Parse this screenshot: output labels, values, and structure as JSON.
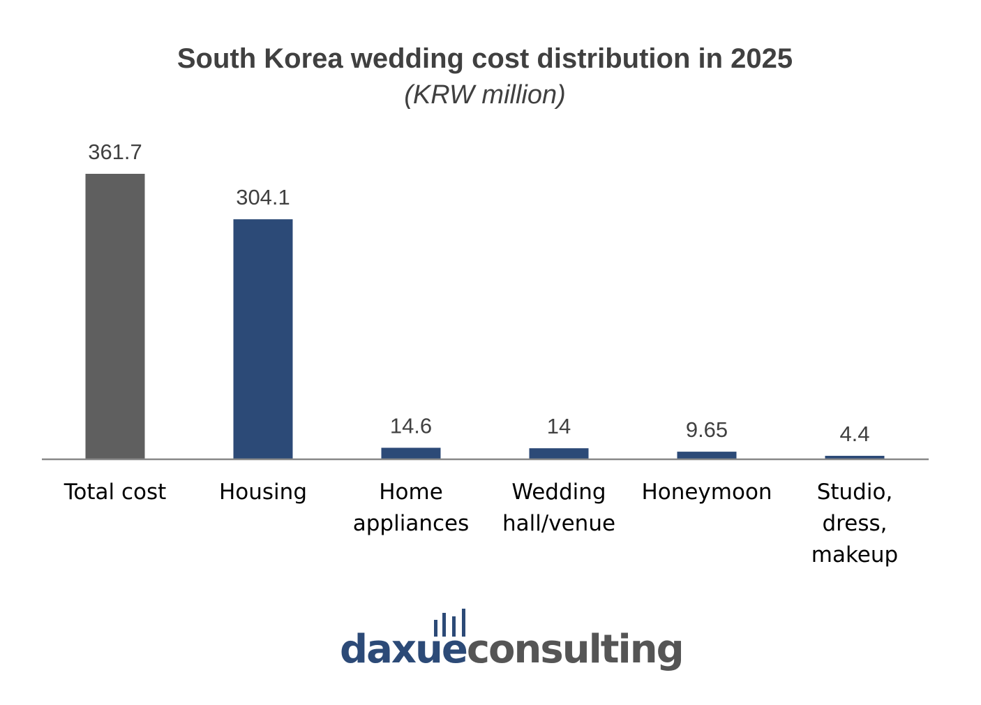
{
  "chart_data": {
    "type": "bar",
    "title": "South Korea wedding cost distribution in 2025",
    "subtitle": "(KRW million)",
    "categories": [
      [
        "Total cost"
      ],
      [
        "Housing"
      ],
      [
        "Home",
        "appliances"
      ],
      [
        "Wedding",
        "hall/venue"
      ],
      [
        "Honeymoon"
      ],
      [
        "Studio,",
        "dress,",
        "makeup"
      ]
    ],
    "values": [
      361.7,
      304.1,
      14.6,
      14,
      9.65,
      4.4
    ],
    "value_labels": [
      "361.7",
      "304.1",
      "14.6",
      "14",
      "9.65",
      "4.4"
    ],
    "bar_colors": [
      "#5f5f5f",
      "#2c4a77",
      "#2c4a77",
      "#2c4a77",
      "#2c4a77",
      "#2c4a77"
    ],
    "ylim": [
      0,
      361.7
    ],
    "grid": false,
    "legend": "none",
    "axis_color": "#888888"
  },
  "logo": {
    "part1": "daxue",
    "part2": "consulting",
    "color1": "#2c4a77",
    "color2": "#555555"
  }
}
